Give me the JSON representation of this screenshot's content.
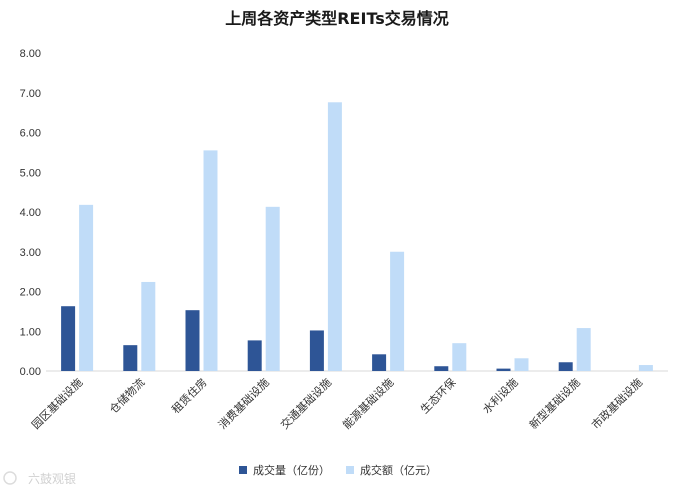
{
  "watermark": "六鼓观银",
  "chart_data": {
    "type": "bar",
    "title": "上周各资产类型REITs交易情况",
    "xlabel": "",
    "ylabel": "",
    "ylim": [
      0,
      8
    ],
    "yticks": [
      "0.00",
      "1.00",
      "2.00",
      "3.00",
      "4.00",
      "5.00",
      "6.00",
      "7.00",
      "8.00"
    ],
    "grid": false,
    "legend_position": "bottom",
    "categories": [
      "园区基础设施",
      "仓储物流",
      "租赁住房",
      "消费基础设施",
      "交通基础设施",
      "能源基础设施",
      "生态环保",
      "水利设施",
      "新型基础设施",
      "市政基础设施"
    ],
    "series": [
      {
        "name": "成交量（亿份）",
        "color": "#2e5596",
        "values": [
          1.63,
          0.65,
          1.53,
          0.77,
          1.02,
          0.42,
          0.12,
          0.06,
          0.22,
          0.0
        ]
      },
      {
        "name": "成交额（亿元）",
        "color": "#c0dcf8",
        "values": [
          4.18,
          2.24,
          5.55,
          4.13,
          6.76,
          3.0,
          0.7,
          0.32,
          1.08,
          0.15
        ]
      }
    ]
  }
}
